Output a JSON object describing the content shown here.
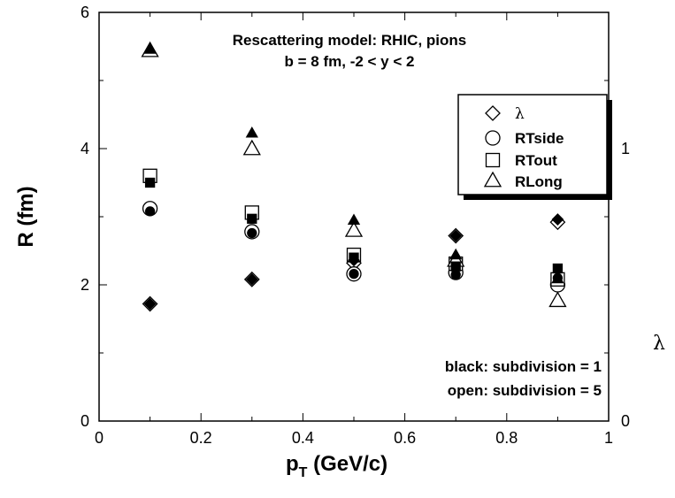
{
  "chart_data": {
    "type": "scatter",
    "title_lines": [
      "Rescattering model: RHIC, pions",
      "b = 8 fm, -2 < y < 2"
    ],
    "xlabel": {
      "main": "p",
      "sub": "T",
      "rest": " (GeV/c)"
    },
    "ylabel": "R (fm)",
    "y2label": "λ",
    "xlim": [
      0,
      1
    ],
    "ylim": [
      0,
      6
    ],
    "y2lim": [
      0,
      1.5
    ],
    "x_ticks": [
      "0",
      "0.2",
      "0.4",
      "0.6",
      "0.8",
      "1"
    ],
    "y_ticks": [
      "0",
      "2",
      "4",
      "6"
    ],
    "y2_ticks": [
      "0",
      "1"
    ],
    "annotations": [
      "black: subdivision = 1",
      "open: subdivision = 5"
    ],
    "legend": [
      {
        "label": "λ",
        "marker": "diamond"
      },
      {
        "label": "RTside",
        "marker": "circle"
      },
      {
        "label": "RTout",
        "marker": "square"
      },
      {
        "label": "RLong",
        "marker": "triangle"
      }
    ],
    "x": [
      0.1,
      0.3,
      0.5,
      0.7,
      0.9
    ],
    "series": [
      {
        "name": "λ subdivision = 1",
        "marker": "diamond",
        "fill": "black",
        "axis": "y2",
        "values": [
          0.43,
          0.52,
          0.59,
          0.68,
          0.74
        ]
      },
      {
        "name": "λ subdivision = 5",
        "marker": "diamond",
        "fill": "open",
        "axis": "y2",
        "values": [
          0.43,
          0.52,
          0.58,
          0.68,
          0.73
        ]
      },
      {
        "name": "RTside subdivision = 1",
        "marker": "circle",
        "fill": "black",
        "axis": "y",
        "values": [
          3.08,
          2.76,
          2.16,
          2.15,
          2.1
        ]
      },
      {
        "name": "RTside subdivision = 5",
        "marker": "circle",
        "fill": "open",
        "axis": "y",
        "values": [
          3.12,
          2.78,
          2.16,
          2.18,
          2.0
        ]
      },
      {
        "name": "RTout subdivision = 1",
        "marker": "square",
        "fill": "black",
        "axis": "y",
        "values": [
          3.5,
          2.97,
          2.4,
          2.27,
          2.24
        ]
      },
      {
        "name": "RTout subdivision = 5",
        "marker": "square",
        "fill": "open",
        "axis": "y",
        "values": [
          3.6,
          3.06,
          2.44,
          2.31,
          2.08
        ]
      },
      {
        "name": "RLong subdivision = 1",
        "marker": "triangle",
        "fill": "black",
        "axis": "y",
        "values": [
          5.46,
          4.23,
          2.95,
          2.44,
          2.09
        ]
      },
      {
        "name": "RLong subdivision = 5",
        "marker": "triangle",
        "fill": "open",
        "axis": "y",
        "values": [
          5.44,
          4.0,
          2.8,
          2.36,
          1.77
        ]
      }
    ]
  }
}
